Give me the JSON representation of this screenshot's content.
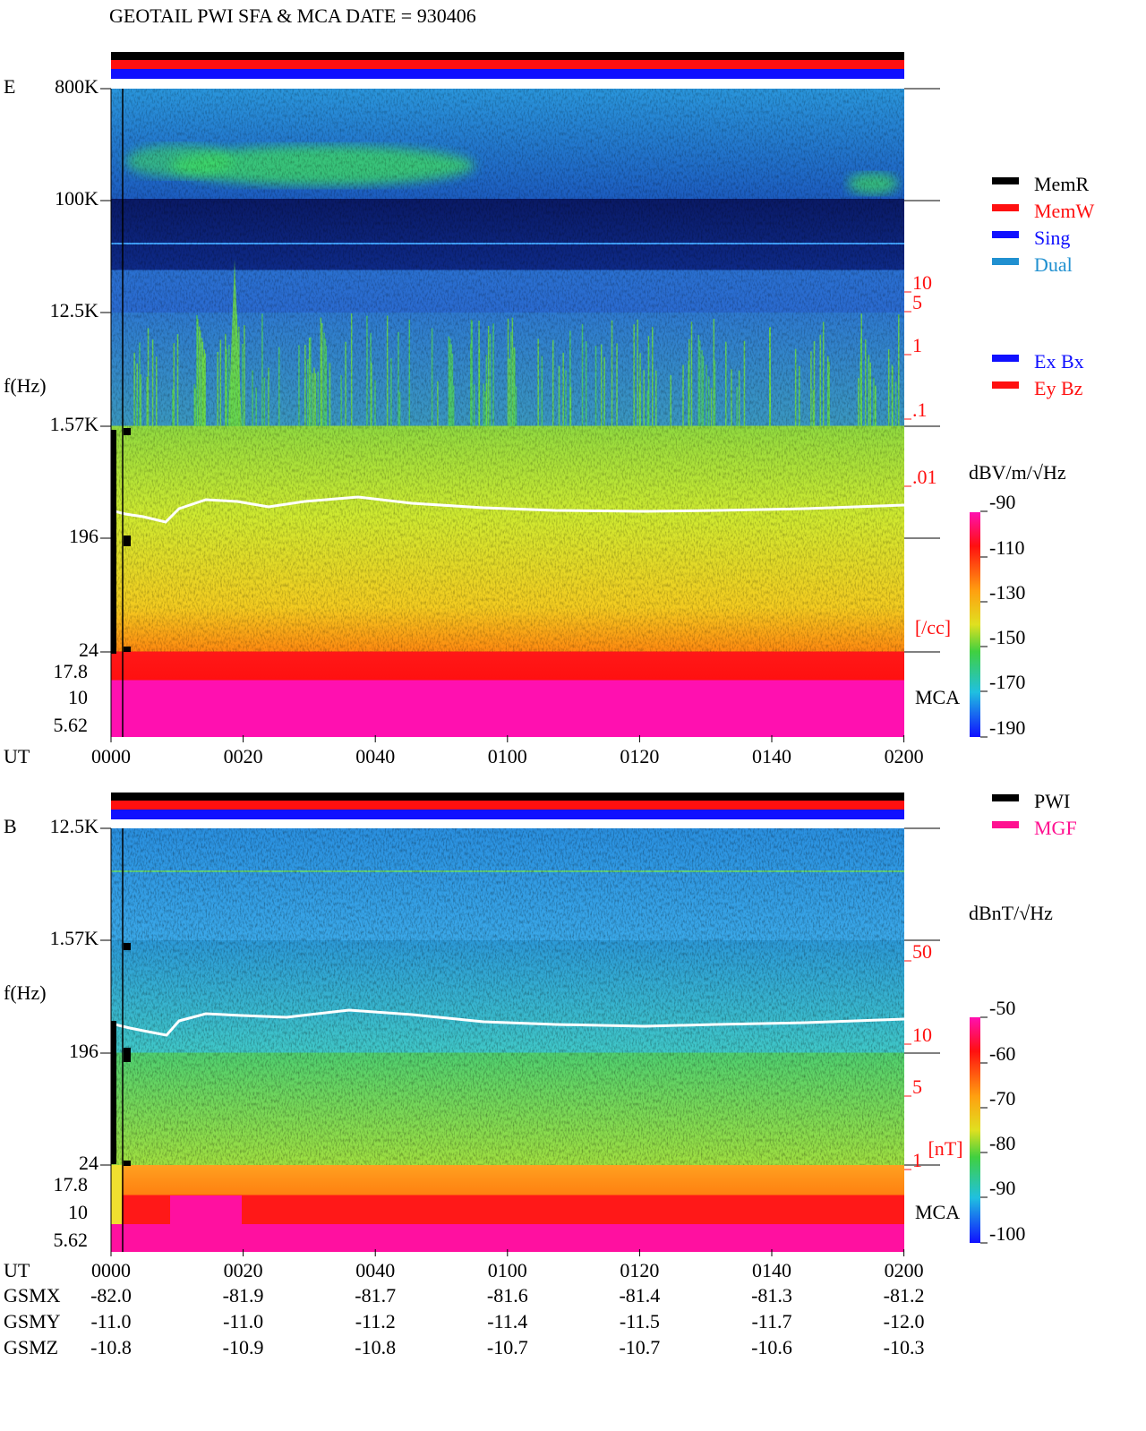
{
  "title": "GEOTAIL  PWI SFA & MCA   DATE = 930406",
  "panel_e": {
    "component": "E",
    "freq_label": "f(Hz)",
    "freq_ticks": [
      "800K",
      "100K",
      "12.5K",
      "1.57K",
      "196",
      "24",
      "17.8",
      "10",
      "5.62"
    ],
    "mca_label": "MCA",
    "density_ticks": [
      "10",
      "5",
      "1",
      ".1",
      ".01"
    ],
    "density_unit": "[/cc]",
    "colorbar_title": "dBV/m/√Hz",
    "colorbar_ticks": [
      "-90",
      "-110",
      "-130",
      "-150",
      "-170",
      "-190"
    ]
  },
  "panel_b": {
    "component": "B",
    "freq_label": "f(Hz)",
    "freq_ticks": [
      "12.5K",
      "1.57K",
      "196",
      "24",
      "17.8",
      "10",
      "5.62"
    ],
    "mca_label": "MCA",
    "density_ticks": [
      "50",
      "10",
      "5",
      "1"
    ],
    "density_unit": "[nT]",
    "colorbar_title": "dBnT/√Hz",
    "colorbar_ticks": [
      "-50",
      "-60",
      "-70",
      "-80",
      "-90",
      "-100"
    ]
  },
  "legend_mode": [
    "MemR",
    "MemW",
    "Sing",
    "Dual"
  ],
  "legend_component": [
    "Ex Bx",
    "Ey Bz"
  ],
  "legend_source": [
    "PWI",
    "MGF"
  ],
  "time_label": "UT",
  "time_ticks": [
    "0000",
    "0020",
    "0040",
    "0100",
    "0120",
    "0140",
    "0200"
  ],
  "orbit": [
    {
      "name": "GSMX",
      "values": [
        "-82.0",
        "-81.9",
        "-81.7",
        "-81.6",
        "-81.4",
        "-81.3",
        "-81.2"
      ]
    },
    {
      "name": "GSMY",
      "values": [
        "-11.0",
        "-11.0",
        "-11.2",
        "-11.4",
        "-11.5",
        "-11.7",
        "-12.0"
      ]
    },
    {
      "name": "GSMZ",
      "values": [
        "-10.8",
        "-10.9",
        "-10.8",
        "-10.7",
        "-10.7",
        "-10.6",
        "-10.3"
      ]
    }
  ]
}
